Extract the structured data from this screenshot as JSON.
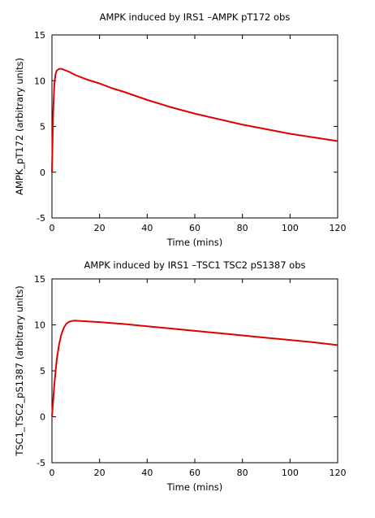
{
  "chart_data": [
    {
      "type": "line",
      "title": "AMPK induced by IRS1 –AMPK pT172 obs",
      "xlabel": "Time (mins)",
      "ylabel": "AMPK_pT172 (arbitrary units)",
      "xlim": [
        0,
        120
      ],
      "ylim": [
        -5,
        15
      ],
      "xticks": [
        "0",
        "20",
        "40",
        "60",
        "80",
        "100",
        "120"
      ],
      "yticks": [
        "-5",
        "0",
        "5",
        "10",
        "15"
      ],
      "grid": false,
      "legend": "none",
      "series": [
        {
          "color": "#e00000",
          "x": [
            0,
            0.5,
            1,
            1.5,
            2,
            3,
            4,
            5,
            7,
            10,
            15,
            20,
            25,
            30,
            40,
            50,
            60,
            70,
            80,
            90,
            100,
            110,
            120
          ],
          "y": [
            0,
            6.5,
            9.6,
            10.7,
            11.1,
            11.3,
            11.3,
            11.2,
            11.0,
            10.6,
            10.1,
            9.7,
            9.2,
            8.8,
            7.9,
            7.1,
            6.4,
            5.8,
            5.2,
            4.7,
            4.2,
            3.8,
            3.4
          ]
        }
      ]
    },
    {
      "type": "line",
      "title": "AMPK induced by IRS1 –TSC1 TSC2 pS1387 obs",
      "xlabel": "Time (mins)",
      "ylabel": "TSC1_TSC2_pS1387 (arbitrary units)",
      "xlim": [
        0,
        120
      ],
      "ylim": [
        -5,
        15
      ],
      "xticks": [
        "0",
        "20",
        "40",
        "60",
        "80",
        "100",
        "120"
      ],
      "yticks": [
        "-5",
        "0",
        "5",
        "10",
        "15"
      ],
      "grid": false,
      "legend": "none",
      "series": [
        {
          "color": "#e00000",
          "x": [
            0,
            1,
            2,
            3,
            4,
            5,
            6,
            7,
            8,
            9,
            10,
            12,
            15,
            20,
            30,
            40,
            50,
            60,
            70,
            80,
            90,
            100,
            110,
            120
          ],
          "y": [
            0,
            3.5,
            6.2,
            7.9,
            9.0,
            9.7,
            10.1,
            10.3,
            10.4,
            10.45,
            10.45,
            10.42,
            10.38,
            10.3,
            10.1,
            9.85,
            9.6,
            9.35,
            9.1,
            8.85,
            8.6,
            8.35,
            8.1,
            7.8
          ]
        }
      ]
    }
  ]
}
